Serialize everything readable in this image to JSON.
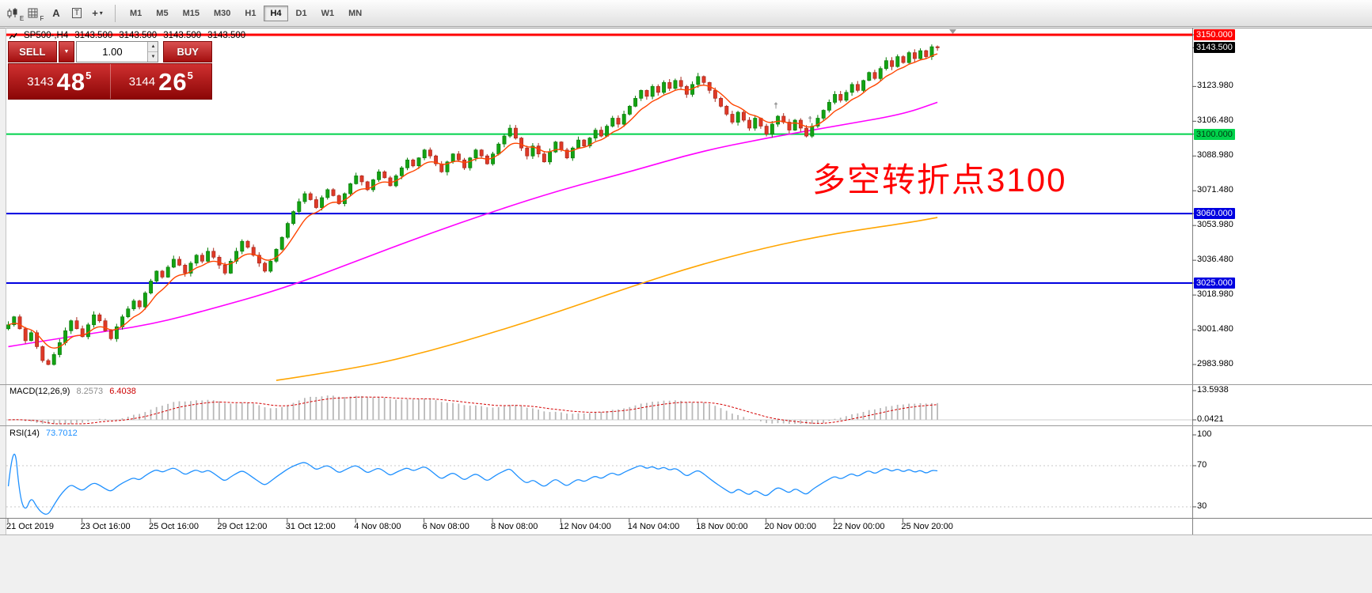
{
  "icons": {
    "caret_down": "▼",
    "caret_up": "▲",
    "caret_small": "▾",
    "dagger": "†"
  },
  "colors": {
    "panel_red": "#a30e0e",
    "bull": "#13a313",
    "bear": "#df3927",
    "line_red": "#ff0000",
    "line_green": "#00d24b",
    "line_blue": "#0000e0",
    "rsi_blue": "#1E90FF",
    "macd_signal": "#d40000",
    "ma_fast": "#ff4500",
    "ma_mid": "#ff00ff",
    "ma_slow": "#ffa500"
  },
  "toolbar": {
    "icons": [
      {
        "name": "candlestick-chart-icon",
        "sub": "E"
      },
      {
        "name": "grid-icon",
        "sub": "F"
      },
      {
        "name": "text-label-icon",
        "glyph": "A"
      },
      {
        "name": "text-box-icon",
        "glyph": "T"
      },
      {
        "name": "crosshair-tool-icon",
        "glyph": "+",
        "caret": "▾"
      }
    ],
    "timeframes": [
      {
        "label": "M1"
      },
      {
        "label": "M5"
      },
      {
        "label": "M15"
      },
      {
        "label": "M30"
      },
      {
        "label": "H1"
      },
      {
        "label": "H4",
        "active": true
      },
      {
        "label": "D1"
      },
      {
        "label": "W1"
      },
      {
        "label": "MN"
      }
    ]
  },
  "chart_header": {
    "symbol_period": "SP500-,H4",
    "open": "3143.500",
    "high": "3143.500",
    "low": "3143.500",
    "close": "3143.500"
  },
  "trade_panel": {
    "sell_label": "SELL",
    "buy_label": "BUY",
    "volume": "1.00",
    "bid_small": "3143",
    "bid_big": "48",
    "bid_sup": "5",
    "ask_small": "3144",
    "ask_big": "26",
    "ask_sup": "5"
  },
  "annotation": {
    "text": "多空转折点3100",
    "color": "#ff0000"
  },
  "indicators": {
    "macd": {
      "label": "MACD(12,26,9)",
      "value1": "8.2573",
      "value2": "6.4038",
      "axis_max": "13.5938",
      "axis_min": "0.0421"
    },
    "rsi": {
      "label": "RSI(14)",
      "value": "73.7012",
      "axis": [
        {
          "label": "100",
          "value": 100
        },
        {
          "label": "70",
          "value": 70
        },
        {
          "label": "30",
          "value": 30
        }
      ],
      "levels": [
        70,
        30
      ]
    }
  },
  "chart_data": {
    "type": "candlestick",
    "symbol": "SP500-",
    "timeframe": "H4",
    "ylim": [
      2974.8,
      3153.2
    ],
    "grid": false,
    "price_axis": {
      "labels": [
        {
          "label": "3123.980",
          "value": 3123.98
        },
        {
          "label": "3106.480",
          "value": 3106.48
        },
        {
          "label": "3088.980",
          "value": 3088.98
        },
        {
          "label": "3071.480",
          "value": 3071.48
        },
        {
          "label": "3053.980",
          "value": 3053.98
        },
        {
          "label": "3036.480",
          "value": 3036.48
        },
        {
          "label": "3018.980",
          "value": 3018.98
        },
        {
          "label": "3001.480",
          "value": 3001.48
        },
        {
          "label": "2983.980",
          "value": 2983.98
        }
      ],
      "badges": [
        {
          "label": "3150.000",
          "value": 3150,
          "bg": "#ff0000",
          "fg": "#ffffff"
        },
        {
          "label": "3143.500",
          "value": 3143.5,
          "bg": "#000000",
          "fg": "#ffffff"
        },
        {
          "label": "3100.000",
          "value": 3100,
          "bg": "#00d24b",
          "fg": "#003b12"
        },
        {
          "label": "3060.000",
          "value": 3060,
          "bg": "#0000e0",
          "fg": "#ffffff"
        },
        {
          "label": "3025.000",
          "value": 3025,
          "bg": "#0000e0",
          "fg": "#ffffff"
        }
      ]
    },
    "levels": [
      {
        "value": 3150,
        "color": "#ff0000",
        "width": 3
      },
      {
        "value": 3100,
        "color": "#00d24b",
        "width": 2
      },
      {
        "value": 3060,
        "color": "#0000e0",
        "width": 2
      },
      {
        "value": 3025,
        "color": "#0000e0",
        "width": 2
      }
    ],
    "current_price": {
      "value": 3143.5,
      "label": "3143.500"
    },
    "time_axis": [
      {
        "label": "21 Oct 2019",
        "i": 0
      },
      {
        "label": "23 Oct 16:00",
        "i": 13
      },
      {
        "label": "25 Oct 16:00",
        "i": 25
      },
      {
        "label": "29 Oct 12:00",
        "i": 37
      },
      {
        "label": "31 Oct 12:00",
        "i": 49
      },
      {
        "label": "4 Nov 08:00",
        "i": 61
      },
      {
        "label": "6 Nov 08:00",
        "i": 73
      },
      {
        "label": "8 Nov 08:00",
        "i": 85
      },
      {
        "label": "12 Nov 04:00",
        "i": 97
      },
      {
        "label": "14 Nov 04:00",
        "i": 109
      },
      {
        "label": "18 Nov 00:00",
        "i": 121
      },
      {
        "label": "20 Nov 00:00",
        "i": 133
      },
      {
        "label": "22 Nov 00:00",
        "i": 145
      },
      {
        "label": "25 Nov 20:00",
        "i": 157
      }
    ],
    "candles": {
      "closes": [
        3004,
        3008,
        3002,
        2996,
        3000,
        2993,
        2986,
        2984,
        2989,
        2995,
        3001,
        3006,
        3002,
        2998,
        3004,
        3009,
        3006,
        3001,
        2997,
        3003,
        3008,
        3012,
        3016,
        3013,
        3020,
        3026,
        3031,
        3028,
        3033,
        3037,
        3034,
        3030,
        3035,
        3039,
        3036,
        3041,
        3038,
        3034,
        3030,
        3036,
        3041,
        3046,
        3043,
        3039,
        3035,
        3031,
        3036,
        3042,
        3048,
        3055,
        3061,
        3066,
        3070,
        3067,
        3063,
        3068,
        3072,
        3069,
        3065,
        3070,
        3075,
        3079,
        3076,
        3072,
        3077,
        3081,
        3078,
        3074,
        3079,
        3083,
        3087,
        3084,
        3088,
        3092,
        3089,
        3085,
        3081,
        3086,
        3090,
        3087,
        3083,
        3088,
        3092,
        3089,
        3085,
        3090,
        3095,
        3099,
        3103,
        3098,
        3093,
        3089,
        3094,
        3090,
        3086,
        3091,
        3096,
        3092,
        3088,
        3093,
        3097,
        3094,
        3098,
        3102,
        3099,
        3104,
        3108,
        3105,
        3110,
        3114,
        3118,
        3122,
        3119,
        3124,
        3121,
        3126,
        3123,
        3127,
        3124,
        3120,
        3125,
        3129,
        3126,
        3122,
        3118,
        3114,
        3110,
        3106,
        3111,
        3107,
        3103,
        3108,
        3104,
        3100,
        3105,
        3109,
        3106,
        3102,
        3107,
        3103,
        3099,
        3104,
        3108,
        3112,
        3116,
        3120,
        3117,
        3121,
        3125,
        3122,
        3127,
        3131,
        3128,
        3133,
        3137,
        3134,
        3139,
        3136,
        3141,
        3138,
        3142,
        3139,
        3144,
        3143.5
      ]
    },
    "ma_fast": {
      "color": "#ff4500",
      "type": "ema",
      "period": 7
    },
    "ma_mid": {
      "color": "#ff00ff",
      "i": [
        0,
        13,
        25,
        37,
        49,
        61,
        73,
        85,
        97,
        109,
        121,
        133,
        145,
        157,
        163
      ],
      "p": [
        2993,
        2999,
        3004,
        3013,
        3023,
        3036,
        3049,
        3061,
        3072,
        3081,
        3091,
        3098,
        3104,
        3110,
        3116
      ]
    },
    "ma_slow": {
      "color": "#ffa500",
      "i": [
        47,
        61,
        73,
        85,
        97,
        109,
        121,
        133,
        145,
        157,
        163
      ],
      "p": [
        2976,
        2982,
        2990,
        3000,
        3011,
        3023,
        3034,
        3043,
        3050,
        3055,
        3058
      ]
    },
    "markers": [
      {
        "i": 135,
        "p": 3113
      },
      {
        "i": 141,
        "p": 3106
      }
    ]
  }
}
